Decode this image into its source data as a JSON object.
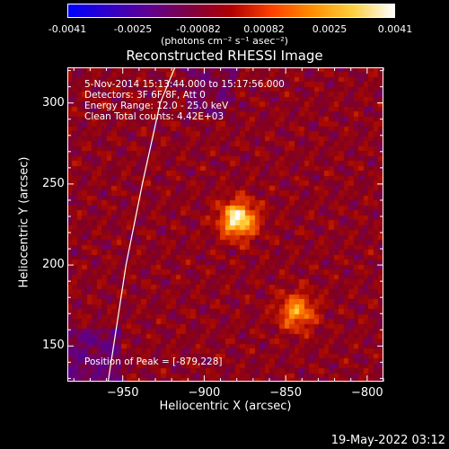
{
  "colorbar": {
    "ticks": [
      "-0.0041",
      "-0.0025",
      "-0.00082",
      "0.00082",
      "0.0025",
      "0.0041"
    ],
    "units": "(photons cm⁻² s⁻¹ asec⁻²)",
    "colors": [
      "#0000ff",
      "#3000c8",
      "#600090",
      "#800040",
      "#b00000",
      "#ff4000",
      "#ff9000",
      "#ffd040",
      "#ffffff"
    ]
  },
  "chart_data": {
    "type": "heatmap",
    "title": "Reconstructed RHESSI Image",
    "xlabel": "Heliocentric X (arcsec)",
    "ylabel": "Heliocentric Y (arcsec)",
    "xlim": [
      -984,
      -790
    ],
    "ylim": [
      128,
      322
    ],
    "xticks": [
      -950,
      -900,
      -850,
      -800
    ],
    "yticks": [
      150,
      200,
      250,
      300
    ],
    "color_range": [
      -0.0041,
      0.0041
    ],
    "sources": [
      {
        "x": -879,
        "y": 228,
        "relative_intensity": 1.0
      },
      {
        "x": -843,
        "y": 171,
        "relative_intensity": 0.68
      }
    ],
    "peak": [
      -879,
      228
    ],
    "limb": [
      [
        -959,
        128
      ],
      [
        -948,
        200
      ],
      [
        -938,
        250
      ],
      [
        -927,
        300
      ],
      [
        -918,
        322
      ]
    ],
    "annotations": {
      "time_range": "5-Nov-2014 15:13:44.000 to 15:17:56.000",
      "detectors": "Detectors: 3F 6F 8F, Att 0",
      "energy": "Energy Range: 12.0 - 25.0 keV",
      "method": "Clean     Total counts: 4.42E+03",
      "peak_label": "Position of Peak = [-879,228]"
    }
  },
  "datestamp": "19-May-2022 03:12"
}
